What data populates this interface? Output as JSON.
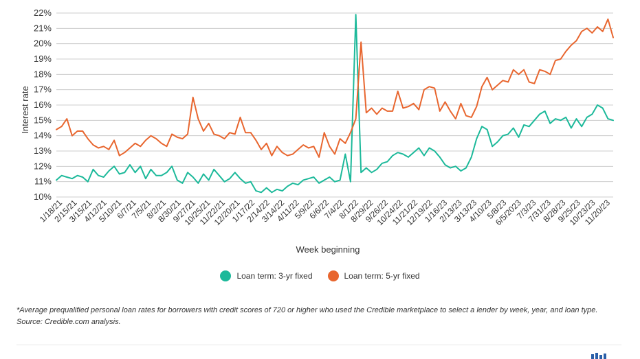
{
  "chart_data": {
    "type": "line",
    "xlabel": "Week beginning",
    "ylabel": "Interest rate",
    "ylim": [
      10,
      22
    ],
    "yticks": [
      "10%",
      "11%",
      "12%",
      "13%",
      "14%",
      "15%",
      "16%",
      "17%",
      "18%",
      "19%",
      "20%",
      "21%",
      "22%"
    ],
    "x_tick_labels": [
      "1/18/21",
      "2/15/21",
      "3/15/21",
      "4/12/21",
      "5/10/21",
      "6/7/21",
      "7/5/21",
      "8/2/21",
      "8/30/21",
      "9/27/21",
      "10/25/21",
      "11/22/21",
      "12/20/21",
      "1/17/22",
      "2/14/22",
      "3/14/22",
      "4/11/22",
      "5/9/22",
      "6/6/22",
      "7/4/22",
      "8/1/22",
      "8/29/22",
      "9/26/22",
      "10/24/22",
      "11/21/22",
      "12/19/22",
      "1/16/23",
      "2/13/23",
      "3/13/23",
      "4/10/23",
      "5/8/23",
      "6/5/2023",
      "7/3/23",
      "7/31/23",
      "8/28/23",
      "9/25/23",
      "10/23/23",
      "11/20/23"
    ],
    "grid": "horizontal",
    "legend_position": "bottom-center",
    "series": [
      {
        "name": "Loan term: 3-yr fixed",
        "color": "#1cb99a",
        "values": [
          11.1,
          11.4,
          11.3,
          11.2,
          11.4,
          11.3,
          11.0,
          11.8,
          11.4,
          11.3,
          11.7,
          12.0,
          11.5,
          11.6,
          12.1,
          11.6,
          12.0,
          11.2,
          11.8,
          11.4,
          11.4,
          11.6,
          12.0,
          11.1,
          10.9,
          11.6,
          11.3,
          10.9,
          11.5,
          11.1,
          11.8,
          11.4,
          11.0,
          11.2,
          11.6,
          11.2,
          10.9,
          11.0,
          10.4,
          10.3,
          10.6,
          10.3,
          10.5,
          10.4,
          10.7,
          10.9,
          10.8,
          11.1,
          11.2,
          11.3,
          10.9,
          11.1,
          11.3,
          11.0,
          11.1,
          12.8,
          11.0,
          21.9,
          11.6,
          11.9,
          11.6,
          11.8,
          12.2,
          12.3,
          12.7,
          12.9,
          12.8,
          12.6,
          12.9,
          13.2,
          12.7,
          13.2,
          13.0,
          12.6,
          12.1,
          11.9,
          12.0,
          11.7,
          11.9,
          12.6,
          13.8,
          14.6,
          14.4,
          13.3,
          13.6,
          14.0,
          14.1,
          14.5,
          13.9,
          14.7,
          14.6,
          15.0,
          15.4,
          15.6,
          14.8,
          15.1,
          15.0,
          15.2,
          14.5,
          15.1,
          14.6,
          15.2,
          15.4,
          16.0,
          15.8,
          15.1,
          15.0
        ]
      },
      {
        "name": "Loan term: 5-yr fixed",
        "color": "#e8662f",
        "values": [
          14.4,
          14.6,
          15.1,
          14.0,
          14.3,
          14.3,
          13.8,
          13.4,
          13.2,
          13.3,
          13.1,
          13.7,
          12.7,
          12.9,
          13.2,
          13.5,
          13.3,
          13.7,
          14.0,
          13.8,
          13.5,
          13.3,
          14.1,
          13.9,
          13.8,
          14.1,
          16.5,
          15.1,
          14.3,
          14.8,
          14.1,
          14.0,
          13.8,
          14.2,
          14.1,
          15.2,
          14.2,
          14.2,
          13.7,
          13.1,
          13.5,
          12.7,
          13.3,
          12.9,
          12.7,
          12.8,
          13.1,
          13.4,
          13.2,
          13.3,
          12.6,
          14.2,
          13.3,
          12.8,
          13.8,
          13.5,
          14.2,
          15.1,
          20.1,
          15.5,
          15.8,
          15.4,
          15.8,
          15.6,
          15.6,
          16.9,
          15.8,
          15.9,
          16.1,
          15.7,
          17.0,
          17.2,
          17.1,
          15.6,
          16.2,
          15.6,
          15.1,
          16.1,
          15.3,
          15.2,
          15.9,
          17.2,
          17.8,
          17.0,
          17.3,
          17.6,
          17.5,
          18.3,
          18.0,
          18.3,
          17.5,
          17.4,
          18.3,
          18.2,
          18.0,
          18.9,
          19.0,
          19.5,
          19.9,
          20.2,
          20.8,
          21.0,
          20.7,
          21.1,
          20.8,
          21.6,
          20.4
        ]
      }
    ]
  },
  "legend": {
    "item1": "Loan term: 3-yr fixed",
    "item2": "Loan term: 5-yr fixed"
  },
  "footnote": "*Average prequalified personal loan rates for borrowers with credit scores of 720 or higher who used the Credible marketplace to select a lender by week, year, and loan type. Source: Credible.com analysis.",
  "colors": {
    "series_3yr": "#1cb99a",
    "series_5yr": "#e8662f",
    "grid": "#cccccc",
    "logo": "#2a5fa8"
  }
}
